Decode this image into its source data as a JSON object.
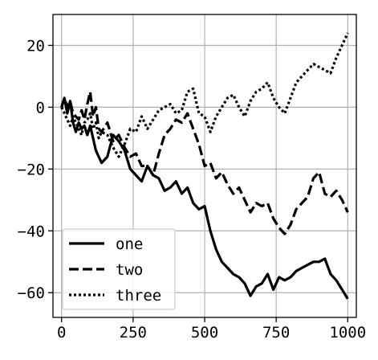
{
  "chart_data": {
    "type": "line",
    "title": "",
    "xlabel": "",
    "ylabel": "",
    "xlim": [
      -30,
      1030
    ],
    "ylim": [
      -68,
      30
    ],
    "xticks": [
      0,
      250,
      500,
      750,
      1000
    ],
    "xtick_labels": [
      "0",
      "250",
      "500",
      "750",
      "1000"
    ],
    "yticks": [
      20,
      0,
      -20,
      -40,
      -60
    ],
    "ytick_labels": [
      "20",
      "0",
      "−20",
      "−40",
      "−60"
    ],
    "grid": true,
    "legend_position": "lower-left",
    "colors": {
      "line": "#000000",
      "grid": "#b0b0b0",
      "axes": "#000000",
      "legend_border": "#cccccc",
      "background": "#ffffff"
    },
    "series": [
      {
        "name": "one",
        "style": "solid",
        "x": [
          0,
          10,
          20,
          30,
          40,
          50,
          60,
          70,
          80,
          90,
          100,
          120,
          140,
          160,
          180,
          200,
          220,
          240,
          260,
          280,
          300,
          320,
          340,
          360,
          380,
          400,
          420,
          440,
          460,
          480,
          500,
          520,
          540,
          560,
          580,
          600,
          620,
          640,
          660,
          680,
          700,
          720,
          740,
          760,
          780,
          800,
          820,
          840,
          860,
          880,
          900,
          920,
          940,
          960,
          980,
          1000
        ],
        "y": [
          0,
          3,
          -2,
          2,
          -5,
          -8,
          -5,
          -7,
          -6,
          -9,
          -6,
          -14,
          -18,
          -16,
          -9,
          -11,
          -14,
          -20,
          -22,
          -24,
          -19,
          -22,
          -23,
          -27,
          -26,
          -24,
          -28,
          -26,
          -31,
          -33,
          -32,
          -40,
          -46,
          -50,
          -52,
          -54,
          -55,
          -57,
          -61,
          -58,
          -57,
          -54,
          -59,
          -55,
          -56,
          -55,
          -53,
          -52,
          -51,
          -50,
          -50,
          -49,
          -54,
          -56,
          -59,
          -62
        ]
      },
      {
        "name": "two",
        "style": "dashed",
        "x": [
          0,
          10,
          20,
          30,
          40,
          50,
          60,
          70,
          80,
          90,
          100,
          110,
          120,
          130,
          140,
          160,
          180,
          200,
          220,
          240,
          260,
          280,
          300,
          320,
          340,
          360,
          380,
          400,
          420,
          440,
          460,
          480,
          500,
          520,
          540,
          560,
          580,
          600,
          620,
          640,
          660,
          680,
          700,
          720,
          740,
          760,
          780,
          800,
          820,
          840,
          860,
          880,
          900,
          920,
          940,
          960,
          980,
          1000
        ],
        "y": [
          0,
          3,
          0,
          2,
          -2,
          -3,
          -4,
          -1,
          -4,
          1,
          5,
          -3,
          0,
          -7,
          -8,
          -5,
          -11,
          -9,
          -13,
          -16,
          -15,
          -19,
          -19,
          -22,
          -15,
          -9,
          -7,
          -4,
          -5,
          -2,
          -7,
          -12,
          -19,
          -18,
          -23,
          -21,
          -25,
          -28,
          -26,
          -30,
          -34,
          -31,
          -32,
          -31,
          -36,
          -39,
          -41,
          -38,
          -33,
          -31,
          -29,
          -23,
          -21,
          -28,
          -29,
          -27,
          -30,
          -34
        ]
      },
      {
        "name": "three",
        "style": "dotted",
        "x": [
          0,
          10,
          20,
          30,
          40,
          50,
          60,
          70,
          80,
          90,
          100,
          110,
          120,
          130,
          140,
          160,
          180,
          200,
          220,
          240,
          260,
          280,
          300,
          320,
          340,
          360,
          380,
          400,
          420,
          440,
          460,
          480,
          500,
          520,
          540,
          560,
          580,
          600,
          620,
          640,
          660,
          680,
          700,
          720,
          740,
          760,
          780,
          800,
          820,
          840,
          860,
          880,
          900,
          920,
          940,
          960,
          980,
          1000
        ],
        "y": [
          0,
          -2,
          -4,
          -6,
          -3,
          -5,
          -7,
          -9,
          -5,
          -4,
          -2,
          -7,
          -5,
          -10,
          -8,
          -9,
          -13,
          -16,
          -12,
          -7,
          -8,
          -3,
          -7,
          -4,
          -1,
          0,
          1,
          -2,
          -1,
          5,
          6,
          -2,
          -3,
          -8,
          -3,
          0,
          3,
          4,
          0,
          -3,
          2,
          5,
          6,
          8,
          3,
          0,
          -2,
          3,
          8,
          10,
          12,
          14,
          13,
          12,
          11,
          16,
          20,
          24
        ]
      }
    ]
  }
}
